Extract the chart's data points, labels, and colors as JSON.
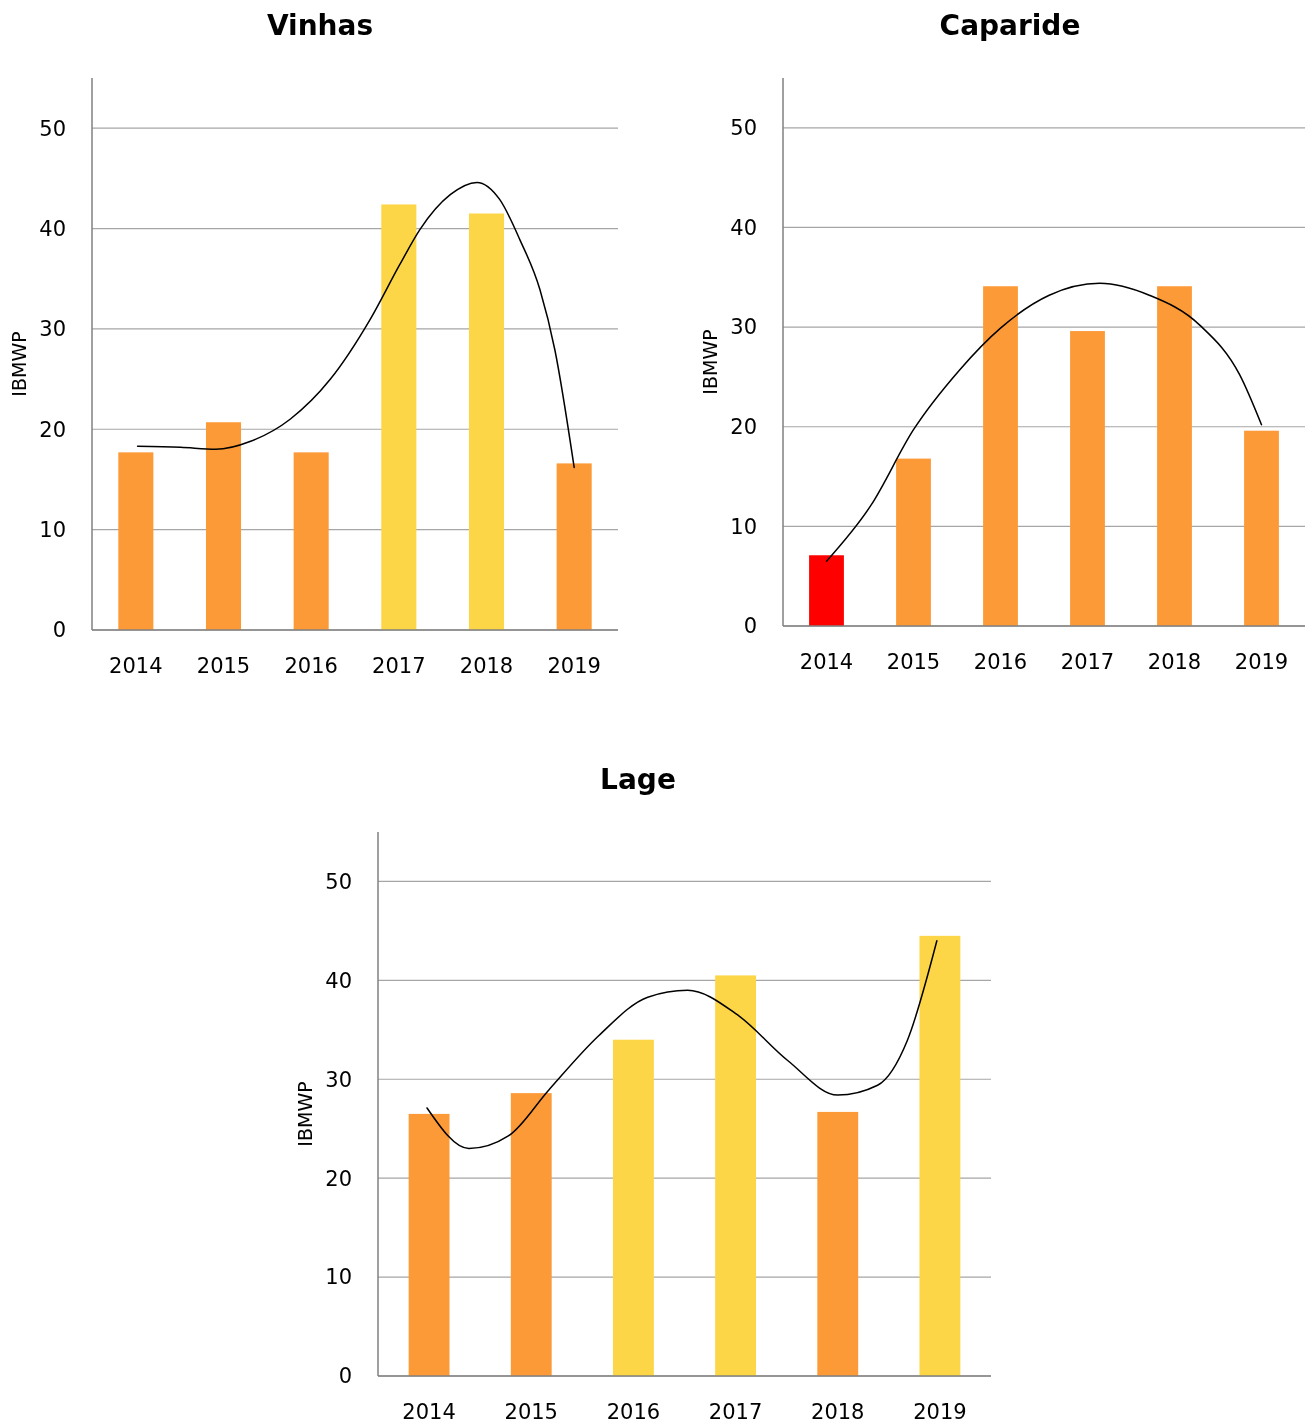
{
  "chart_data": [
    {
      "type": "bar",
      "title": "Vinhas",
      "ylabel": "IBMWP",
      "x": [
        2014,
        2015,
        2016,
        2017,
        2018,
        2019
      ],
      "xlim": [
        2013.5,
        2019.5
      ],
      "xticks": [
        2014,
        2015,
        2016,
        2017,
        2018,
        2019
      ],
      "ylim": [
        0,
        55
      ],
      "yticks": [
        0,
        10,
        20,
        30,
        40,
        50
      ],
      "grid": "y",
      "series": [
        {
          "values": [
            17.7,
            20.7,
            17.7,
            42.4,
            41.5,
            16.6
          ],
          "colors": [
            "#fd9a38",
            "#fd9a38",
            "#fd9a38",
            "#fdd647",
            "#fdd647",
            "#fd9a38"
          ]
        },
        {
          "type": "line",
          "color": "#000000",
          "x": [
            2014.02,
            2014.51,
            2014.91,
            2015.31,
            2015.76,
            2016.22,
            2016.67,
            2017.01,
            2017.24,
            2017.59,
            2017.89,
            2018.15,
            2018.38,
            2018.61,
            2018.78,
            2019.0
          ],
          "values": [
            18.3,
            18.2,
            18.0,
            18.8,
            21.0,
            25.0,
            30.9,
            36.4,
            39.9,
            43.4,
            44.6,
            42.9,
            38.9,
            33.9,
            27.9,
            16.2
          ]
        }
      ]
    },
    {
      "type": "bar",
      "title": "Caparide",
      "ylabel": "IBMWP",
      "x": [
        2014,
        2015,
        2016,
        2017,
        2018,
        2019
      ],
      "xlim": [
        2013.5,
        2019.5
      ],
      "xticks": [
        2014,
        2015,
        2016,
        2017,
        2018,
        2019
      ],
      "ylim": [
        0,
        55
      ],
      "yticks": [
        0,
        10,
        20,
        30,
        40,
        50
      ],
      "grid": "y",
      "series": [
        {
          "values": [
            7.1,
            16.8,
            34.1,
            29.6,
            34.1,
            19.6
          ],
          "colors": [
            "#fe0000",
            "#fd9a38",
            "#fd9a38",
            "#fd9a38",
            "#fd9a38",
            "#fd9a38"
          ]
        },
        {
          "type": "line",
          "color": "#000000",
          "x": [
            2014.0,
            2014.51,
            2015.0,
            2015.53,
            2016.0,
            2016.56,
            2017.14,
            2017.71,
            2018.29,
            2018.75,
            2019.0
          ],
          "values": [
            6.5,
            12.1,
            19.7,
            25.7,
            29.9,
            33.2,
            34.4,
            33.2,
            30.2,
            25.2,
            20.2
          ]
        }
      ]
    },
    {
      "type": "bar",
      "title": "Lage",
      "ylabel": "IBMWP",
      "x": [
        2014,
        2015,
        2016,
        2017,
        2018,
        2019
      ],
      "xlim": [
        2013.5,
        2019.5
      ],
      "xticks": [
        2014,
        2015,
        2016,
        2017,
        2018,
        2019
      ],
      "ylim": [
        0,
        55
      ],
      "yticks": [
        0,
        10,
        20,
        30,
        40,
        50
      ],
      "grid": "y",
      "series": [
        {
          "values": [
            26.5,
            28.6,
            34.0,
            40.5,
            26.7,
            44.5
          ],
          "colors": [
            "#fd9a38",
            "#fd9a38",
            "#fdd647",
            "#fdd647",
            "#fd9a38",
            "#fdd647"
          ]
        },
        {
          "type": "line",
          "color": "#000000",
          "x": [
            2013.98,
            2014.39,
            2014.78,
            2015.17,
            2015.66,
            2016.14,
            2016.53,
            2017.02,
            2017.51,
            2018.0,
            2018.39,
            2018.68,
            2018.97
          ],
          "values": [
            27.1,
            23.0,
            24.3,
            28.9,
            34.4,
            38.3,
            39.0,
            36.5,
            31.9,
            28.4,
            29.4,
            33.9,
            44.0
          ]
        }
      ]
    }
  ]
}
